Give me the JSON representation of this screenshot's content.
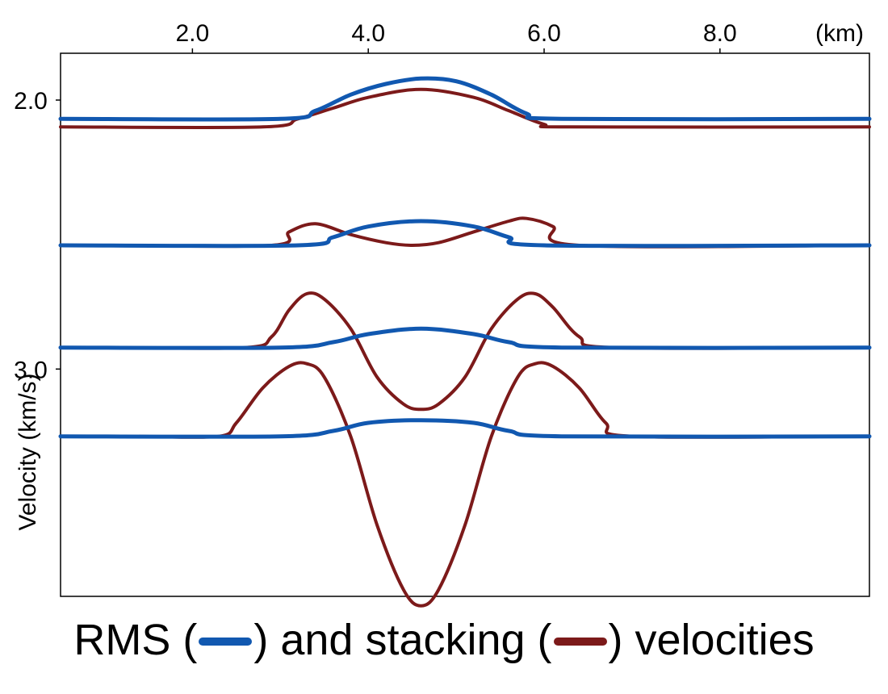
{
  "chart_data": {
    "type": "line",
    "xlabel": "(km)",
    "ylabel": "Velocity (km/s)",
    "xlim": [
      0.5,
      9.7
    ],
    "ylim": [
      2.0,
      3.92
    ],
    "x_axis_position": "top",
    "y_inverted": true,
    "grid": false,
    "x_ticks": [
      2.0,
      4.0,
      6.0,
      8.0
    ],
    "x_tick_labels": [
      "2.0",
      "4.0",
      "6.0",
      "8.0"
    ],
    "y_ticks": [
      2.0,
      3.0
    ],
    "y_tick_labels": [
      "2.0",
      "3.0"
    ],
    "colors": {
      "rms": "#1158b0",
      "stacking": "#7c1a1a"
    },
    "series": [
      {
        "kind": "rms",
        "points": [
          [
            0.5,
            2.07
          ],
          [
            3.0,
            2.07
          ],
          [
            3.4,
            2.04
          ],
          [
            3.8,
            1.98
          ],
          [
            4.2,
            1.94
          ],
          [
            4.6,
            1.92
          ],
          [
            5.0,
            1.93
          ],
          [
            5.4,
            1.98
          ],
          [
            5.8,
            2.05
          ],
          [
            6.2,
            2.07
          ],
          [
            9.7,
            2.07
          ]
        ]
      },
      {
        "kind": "stacking",
        "points": [
          [
            0.5,
            2.1
          ],
          [
            2.8,
            2.1
          ],
          [
            3.2,
            2.07
          ],
          [
            3.6,
            2.03
          ],
          [
            4.0,
            1.99
          ],
          [
            4.6,
            1.96
          ],
          [
            5.2,
            1.99
          ],
          [
            5.6,
            2.04
          ],
          [
            6.0,
            2.09
          ],
          [
            6.3,
            2.1
          ],
          [
            9.7,
            2.1
          ]
        ]
      },
      {
        "kind": "rms",
        "points": [
          [
            0.5,
            2.54
          ],
          [
            3.2,
            2.54
          ],
          [
            3.6,
            2.51
          ],
          [
            4.0,
            2.47
          ],
          [
            4.6,
            2.45
          ],
          [
            5.2,
            2.47
          ],
          [
            5.6,
            2.51
          ],
          [
            6.0,
            2.54
          ],
          [
            9.7,
            2.54
          ]
        ]
      },
      {
        "kind": "stacking",
        "points": [
          [
            0.9,
            2.54
          ],
          [
            2.9,
            2.54
          ],
          [
            3.1,
            2.49
          ],
          [
            3.4,
            2.46
          ],
          [
            3.8,
            2.5
          ],
          [
            4.2,
            2.53
          ],
          [
            4.5,
            2.54
          ],
          [
            4.8,
            2.53
          ],
          [
            5.2,
            2.49
          ],
          [
            5.6,
            2.45
          ],
          [
            5.8,
            2.44
          ],
          [
            6.1,
            2.47
          ],
          [
            6.4,
            2.54
          ],
          [
            9.7,
            2.54
          ]
        ]
      },
      {
        "kind": "rms",
        "points": [
          [
            0.5,
            2.92
          ],
          [
            3.0,
            2.92
          ],
          [
            3.6,
            2.9
          ],
          [
            4.0,
            2.87
          ],
          [
            4.6,
            2.85
          ],
          [
            5.2,
            2.87
          ],
          [
            5.6,
            2.9
          ],
          [
            6.2,
            2.92
          ],
          [
            9.7,
            2.92
          ]
        ]
      },
      {
        "kind": "stacking",
        "points": [
          [
            1.0,
            2.92
          ],
          [
            2.6,
            2.92
          ],
          [
            2.9,
            2.88
          ],
          [
            3.1,
            2.78
          ],
          [
            3.3,
            2.72
          ],
          [
            3.5,
            2.74
          ],
          [
            3.8,
            2.85
          ],
          [
            4.1,
            3.03
          ],
          [
            4.4,
            3.13
          ],
          [
            4.6,
            3.15
          ],
          [
            4.8,
            3.13
          ],
          [
            5.1,
            3.03
          ],
          [
            5.4,
            2.85
          ],
          [
            5.7,
            2.74
          ],
          [
            5.9,
            2.72
          ],
          [
            6.1,
            2.77
          ],
          [
            6.4,
            2.88
          ],
          [
            6.8,
            2.92
          ],
          [
            9.7,
            2.92
          ]
        ]
      },
      {
        "kind": "rms",
        "points": [
          [
            0.5,
            3.25
          ],
          [
            3.0,
            3.25
          ],
          [
            3.6,
            3.23
          ],
          [
            4.0,
            3.2
          ],
          [
            4.6,
            3.19
          ],
          [
            5.2,
            3.2
          ],
          [
            5.6,
            3.23
          ],
          [
            6.2,
            3.25
          ],
          [
            9.7,
            3.25
          ]
        ]
      },
      {
        "kind": "stacking",
        "points": [
          [
            1.4,
            3.25
          ],
          [
            2.3,
            3.25
          ],
          [
            2.5,
            3.2
          ],
          [
            2.8,
            3.07
          ],
          [
            3.1,
            2.99
          ],
          [
            3.3,
            2.98
          ],
          [
            3.5,
            3.03
          ],
          [
            3.8,
            3.25
          ],
          [
            4.1,
            3.58
          ],
          [
            4.4,
            3.82
          ],
          [
            4.6,
            3.88
          ],
          [
            4.8,
            3.82
          ],
          [
            5.1,
            3.58
          ],
          [
            5.4,
            3.25
          ],
          [
            5.7,
            3.03
          ],
          [
            5.9,
            2.98
          ],
          [
            6.1,
            2.99
          ],
          [
            6.4,
            3.07
          ],
          [
            6.7,
            3.2
          ],
          [
            7.0,
            3.25
          ],
          [
            9.6,
            3.25
          ]
        ]
      }
    ]
  },
  "caption": {
    "part1": "RMS (",
    "part2": ") and stacking (",
    "part3": ") velocities"
  }
}
